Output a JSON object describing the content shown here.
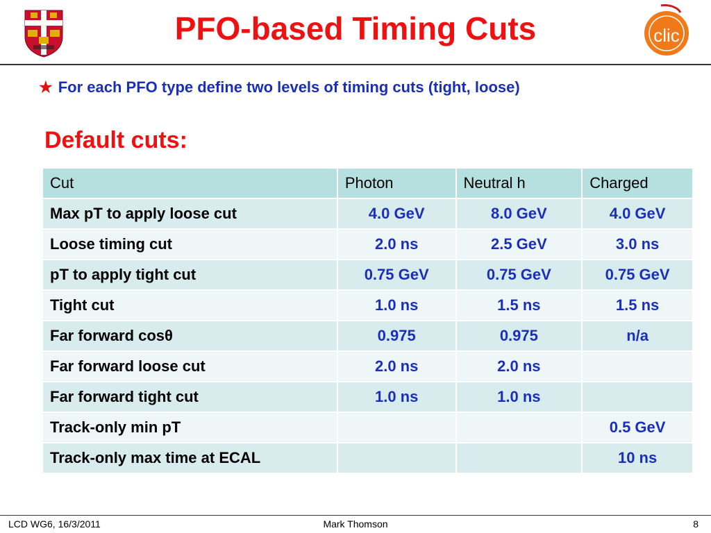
{
  "header": {
    "title": "PFO-based Timing Cuts",
    "left_logo_icon": "cambridge-crest-icon",
    "right_logo_icon": "clic-logo-icon",
    "right_logo_text": "clic"
  },
  "bullet": {
    "icon": "star-icon",
    "text": "For each PFO type define two levels of timing cuts (tight, loose)"
  },
  "section": {
    "heading": "Default cuts:"
  },
  "table": {
    "headers": [
      "Cut",
      "Photon",
      "Neutral h",
      "Charged"
    ],
    "rows": [
      {
        "label": "Max pT to apply loose cut",
        "photon": "4.0 GeV",
        "neutral": "8.0 GeV",
        "charged": "4.0 GeV"
      },
      {
        "label": "Loose timing cut",
        "photon": "2.0 ns",
        "neutral": "2.5 GeV",
        "charged": "3.0 ns"
      },
      {
        "label": "pT to apply tight cut",
        "photon": "0.75 GeV",
        "neutral": "0.75 GeV",
        "charged": "0.75 GeV"
      },
      {
        "label": "Tight cut",
        "photon": "1.0 ns",
        "neutral": "1.5 ns",
        "charged": "1.5 ns"
      },
      {
        "label": "Far forward cosθ",
        "photon": "0.975",
        "neutral": "0.975",
        "charged": "n/a"
      },
      {
        "label": "Far forward loose cut",
        "photon": "2.0 ns",
        "neutral": "2.0 ns",
        "charged": ""
      },
      {
        "label": "Far forward tight cut",
        "photon": "1.0 ns",
        "neutral": "1.0 ns",
        "charged": ""
      },
      {
        "label": "Track-only min pT",
        "photon": "",
        "neutral": "",
        "charged": "0.5 GeV"
      },
      {
        "label": "Track-only max time at ECAL",
        "photon": "",
        "neutral": "",
        "charged": "10 ns"
      }
    ]
  },
  "footer": {
    "left": "LCD WG6, 16/3/2011",
    "center": "Mark Thomson",
    "right": "8"
  },
  "colors": {
    "title": "#ee1111",
    "bullet_text": "#1a2fb8",
    "table_header": "#b6dfe0",
    "row_odd": "#d9eced",
    "row_even": "#eef6f7"
  }
}
